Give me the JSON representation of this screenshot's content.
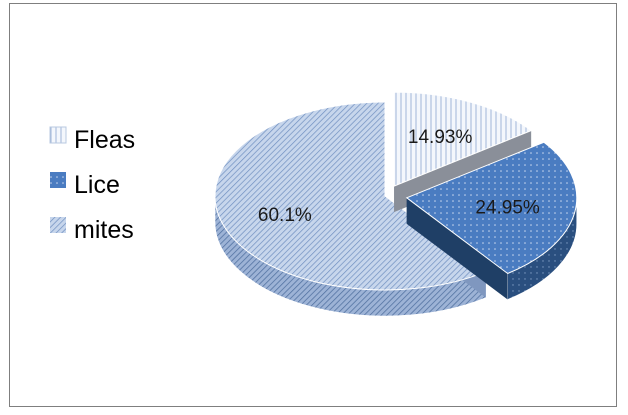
{
  "chart_data": {
    "type": "pie",
    "style": "3d-exploded",
    "title": "",
    "categories": [
      "Fleas",
      "Lice",
      "mites"
    ],
    "values": [
      14.93,
      24.95,
      60.1
    ],
    "labels": [
      "14.93%",
      "24.95%",
      "60.1%"
    ],
    "legend": "left",
    "colors": [
      "#eef2f9",
      "#4f7fc0",
      "#c3d2e8"
    ]
  }
}
